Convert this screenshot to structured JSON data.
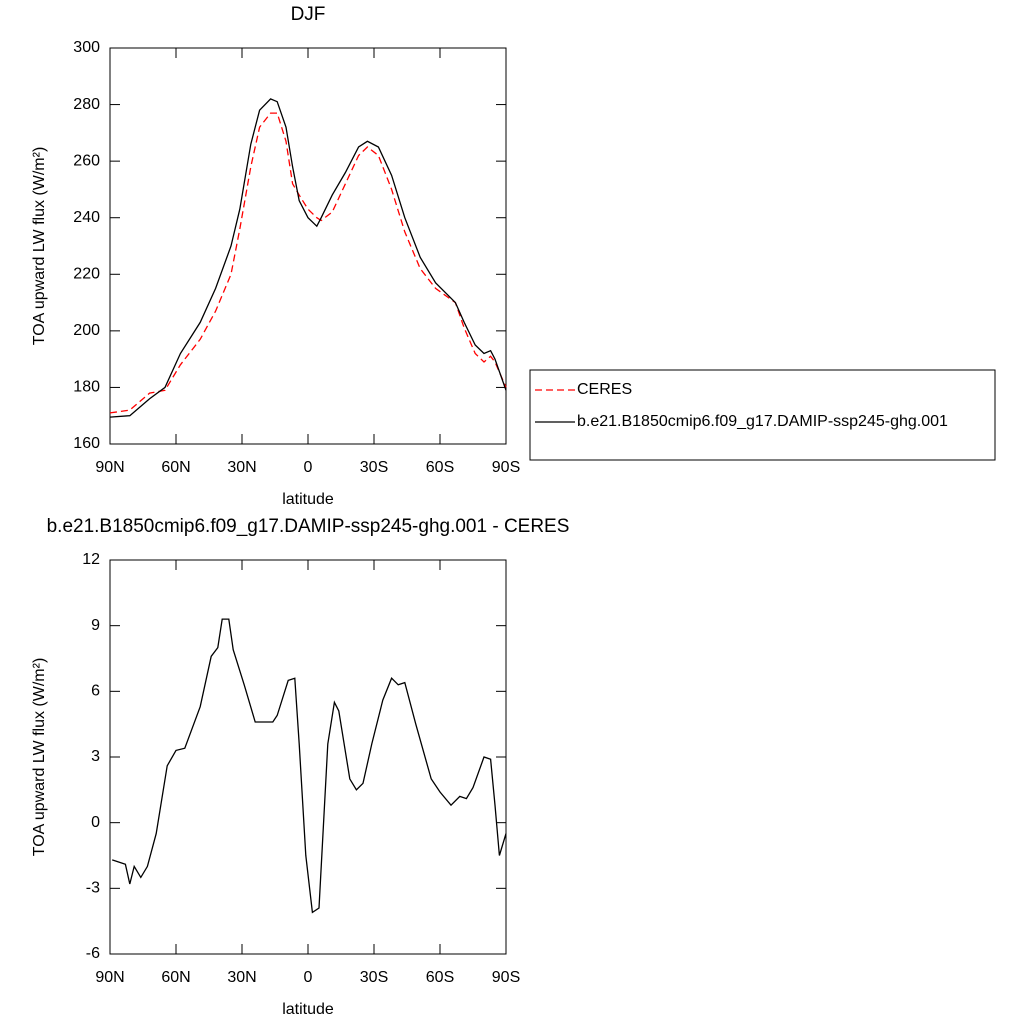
{
  "chart_data": [
    {
      "type": "line",
      "title": "DJF",
      "xlabel": "latitude",
      "ylabel": "TOA upward LW flux (W/m²)",
      "x": [
        90,
        81,
        72,
        65,
        58,
        49,
        42,
        35,
        31,
        26,
        22,
        17,
        14,
        10,
        7,
        4,
        0,
        -4,
        -6,
        -11,
        -17,
        -23,
        -27,
        -32,
        -38,
        -44,
        -51,
        -58,
        -67,
        -71,
        -76,
        -80,
        -83,
        -85,
        -90
      ],
      "series": [
        {
          "name": "CERES",
          "color": "#ff0000",
          "line_style": "dashed",
          "values": [
            171,
            172,
            178,
            179,
            188,
            197,
            207,
            220,
            236,
            258,
            272,
            277,
            277,
            267,
            252,
            248,
            243,
            240,
            239,
            242,
            252,
            262,
            265,
            262,
            250,
            235,
            222,
            215,
            210,
            201,
            192,
            189,
            191,
            189,
            180
          ]
        },
        {
          "name": "b.e21.B1850cmip6.f09_g17.DAMIP-ssp245-ghg.001",
          "color": "#000000",
          "line_style": "solid",
          "values": [
            169.5,
            170,
            176,
            180,
            192,
            203,
            215,
            230,
            243,
            266,
            278,
            282,
            281,
            272,
            258,
            246,
            240,
            237,
            240,
            248,
            256,
            265,
            267,
            265,
            255,
            240,
            226,
            217,
            210,
            203,
            195,
            192,
            193,
            190,
            179
          ]
        }
      ],
      "xlim": [
        90,
        -90
      ],
      "xticks": [
        {
          "value": 90,
          "label": "90N"
        },
        {
          "value": 60,
          "label": "60N"
        },
        {
          "value": 30,
          "label": "30N"
        },
        0,
        {
          "value": -30,
          "label": "30S"
        },
        {
          "value": -60,
          "label": "60S"
        },
        {
          "value": -90,
          "label": "90S"
        }
      ],
      "ylim": [
        160,
        300
      ],
      "yticks": [
        160,
        180,
        200,
        220,
        240,
        260,
        280,
        300
      ],
      "legend": "right"
    },
    {
      "type": "line",
      "title": "b.e21.B1850cmip6.f09_g17.DAMIP-ssp245-ghg.001 - CERES",
      "xlabel": "latitude",
      "ylabel": "TOA upward LW flux (W/m²)",
      "x": [
        89,
        83,
        81,
        79,
        76,
        73,
        69,
        64,
        60,
        56,
        49,
        44,
        41,
        39,
        36,
        34,
        29,
        24,
        16,
        14,
        9,
        6,
        4,
        1,
        -2,
        -5,
        -9,
        -12,
        -14,
        -19,
        -22,
        -25,
        -29,
        -34,
        -38,
        -41,
        -44,
        -49,
        -56,
        -60,
        -65,
        -69,
        -72,
        -75,
        -80,
        -83,
        -85,
        -87,
        -90
      ],
      "series": [
        {
          "color": "#000000",
          "line_style": "solid",
          "values": [
            -1.7,
            -1.9,
            -2.8,
            -2.0,
            -2.5,
            -2.0,
            -0.5,
            2.6,
            3.3,
            3.4,
            5.3,
            7.6,
            8.0,
            9.3,
            9.3,
            7.9,
            6.3,
            4.6,
            4.6,
            4.9,
            6.5,
            6.6,
            3.6,
            -1.5,
            -4.1,
            -3.9,
            3.6,
            5.5,
            5.1,
            2.0,
            1.5,
            1.8,
            3.6,
            5.6,
            6.6,
            6.3,
            6.4,
            4.5,
            2.0,
            1.4,
            0.8,
            1.2,
            1.1,
            1.6,
            3.0,
            2.9,
            0.8,
            -1.5,
            -0.5
          ]
        }
      ],
      "xlim": [
        90,
        -90
      ],
      "xticks": [
        {
          "value": 90,
          "label": "90N"
        },
        {
          "value": 60,
          "label": "60N"
        },
        {
          "value": 30,
          "label": "30N"
        },
        0,
        {
          "value": -30,
          "label": "30S"
        },
        {
          "value": -60,
          "label": "60S"
        },
        {
          "value": -90,
          "label": "90S"
        }
      ],
      "ylim": [
        -6,
        12
      ],
      "yticks": [
        -6,
        -3,
        0,
        3,
        6,
        9,
        12
      ]
    }
  ]
}
